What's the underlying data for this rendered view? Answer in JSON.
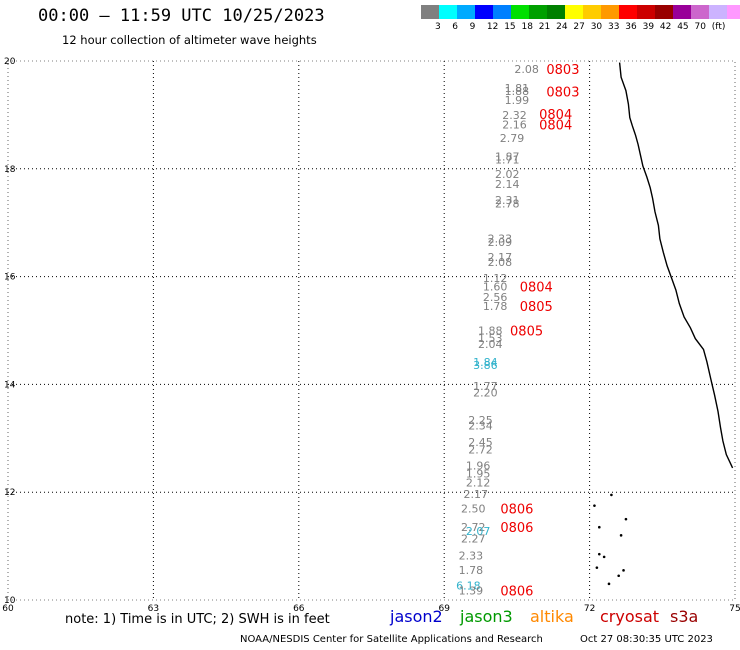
{
  "header": {
    "title": "00:00 — 11:59 UTC 10/25/2023",
    "subtitle": "12 hour collection of altimeter wave heights"
  },
  "legend": {
    "colors": [
      "#808080",
      "#00ffff",
      "#00aaff",
      "#0000ff",
      "#0080ff",
      "#00e000",
      "#00a000",
      "#008000",
      "#ffff00",
      "#ffcc00",
      "#ff9900",
      "#ff0000",
      "#cc0000",
      "#990000",
      "#990099",
      "#cc66cc",
      "#ccb3ff",
      "#ff99ff",
      "#000000"
    ],
    "labels": [
      "3",
      "6",
      "9",
      "12",
      "15",
      "18",
      "21",
      "24",
      "27",
      "30",
      "33",
      "36",
      "39",
      "42",
      "45",
      "70",
      "(ft)"
    ]
  },
  "map": {
    "lon_labels": [
      "60",
      "63",
      "66",
      "69",
      "72",
      "75"
    ],
    "lat_labels": [
      "10",
      "12",
      "14",
      "16",
      "18",
      "20"
    ],
    "lon_range": [
      60,
      75
    ],
    "lat_range": [
      10,
      20
    ],
    "grid": true,
    "coastline": "west coast of India"
  },
  "observations": [
    {
      "lon": 70.7,
      "lat": 19.85,
      "v": "2.08",
      "c": "#808080"
    },
    {
      "lon": 70.5,
      "lat": 19.5,
      "v": "1.81",
      "c": "#808080"
    },
    {
      "lon": 70.5,
      "lat": 19.44,
      "v": "1.88",
      "c": "#808080"
    },
    {
      "lon": 70.5,
      "lat": 19.28,
      "v": "1.99",
      "c": "#808080"
    },
    {
      "lon": 70.45,
      "lat": 19.0,
      "v": "2.32",
      "c": "#808080"
    },
    {
      "lon": 70.45,
      "lat": 18.82,
      "v": "2.16",
      "c": "#808080"
    },
    {
      "lon": 70.4,
      "lat": 18.57,
      "v": "2.79",
      "c": "#808080"
    },
    {
      "lon": 70.3,
      "lat": 18.23,
      "v": "1.87",
      "c": "#808080"
    },
    {
      "lon": 70.3,
      "lat": 18.17,
      "v": "1.71",
      "c": "#808080"
    },
    {
      "lon": 70.3,
      "lat": 17.9,
      "v": "2.02",
      "c": "#808080"
    },
    {
      "lon": 70.3,
      "lat": 17.72,
      "v": "2.14",
      "c": "#808080"
    },
    {
      "lon": 70.3,
      "lat": 17.42,
      "v": "2.31",
      "c": "#808080"
    },
    {
      "lon": 70.3,
      "lat": 17.36,
      "v": "2.78",
      "c": "#808080"
    },
    {
      "lon": 70.15,
      "lat": 16.71,
      "v": "2.33",
      "c": "#808080"
    },
    {
      "lon": 70.15,
      "lat": 16.64,
      "v": "2.09",
      "c": "#808080"
    },
    {
      "lon": 70.15,
      "lat": 16.36,
      "v": "2.17",
      "c": "#808080"
    },
    {
      "lon": 70.15,
      "lat": 16.27,
      "v": "2.08",
      "c": "#808080"
    },
    {
      "lon": 70.05,
      "lat": 15.97,
      "v": "1.12",
      "c": "#808080"
    },
    {
      "lon": 70.05,
      "lat": 15.82,
      "v": "1.60",
      "c": "#808080"
    },
    {
      "lon": 70.05,
      "lat": 15.62,
      "v": "2.56",
      "c": "#808080"
    },
    {
      "lon": 70.05,
      "lat": 15.45,
      "v": "1.78",
      "c": "#808080"
    },
    {
      "lon": 69.95,
      "lat": 15.0,
      "v": "1.88",
      "c": "#808080"
    },
    {
      "lon": 69.95,
      "lat": 14.86,
      "v": "1.53",
      "c": "#808080"
    },
    {
      "lon": 69.95,
      "lat": 14.75,
      "v": "2.04",
      "c": "#808080"
    },
    {
      "lon": 69.85,
      "lat": 14.42,
      "v": "1.84",
      "c": "#33b3cc"
    },
    {
      "lon": 69.85,
      "lat": 14.36,
      "v": "3.86",
      "c": "#33b3cc"
    },
    {
      "lon": 69.85,
      "lat": 13.97,
      "v": "1.77",
      "c": "#808080"
    },
    {
      "lon": 69.85,
      "lat": 13.85,
      "v": "2.20",
      "c": "#808080"
    },
    {
      "lon": 69.75,
      "lat": 13.34,
      "v": "2.25",
      "c": "#808080"
    },
    {
      "lon": 69.75,
      "lat": 13.24,
      "v": "2.34",
      "c": "#808080"
    },
    {
      "lon": 69.75,
      "lat": 12.93,
      "v": "2.45",
      "c": "#808080"
    },
    {
      "lon": 69.75,
      "lat": 12.79,
      "v": "2.72",
      "c": "#808080"
    },
    {
      "lon": 69.7,
      "lat": 12.5,
      "v": "1.96",
      "c": "#808080"
    },
    {
      "lon": 69.7,
      "lat": 12.35,
      "v": "1.95",
      "c": "#808080"
    },
    {
      "lon": 69.7,
      "lat": 12.18,
      "v": "2.12",
      "c": "#808080"
    },
    {
      "lon": 69.65,
      "lat": 11.97,
      "v": "2.17",
      "c": "#808080"
    },
    {
      "lon": 69.6,
      "lat": 11.7,
      "v": "2.50",
      "c": "#808080"
    },
    {
      "lon": 69.6,
      "lat": 11.35,
      "v": "2.72",
      "c": "#808080"
    },
    {
      "lon": 69.7,
      "lat": 11.28,
      "v": "2.07",
      "c": "#33b3cc"
    },
    {
      "lon": 69.6,
      "lat": 11.14,
      "v": "2.27",
      "c": "#808080"
    },
    {
      "lon": 69.55,
      "lat": 10.83,
      "v": "2.33",
      "c": "#808080"
    },
    {
      "lon": 69.55,
      "lat": 10.56,
      "v": "1.78",
      "c": "#808080"
    },
    {
      "lon": 69.5,
      "lat": 10.27,
      "v": "6.18",
      "c": "#33b3cc"
    },
    {
      "lon": 69.55,
      "lat": 10.18,
      "v": "1.39",
      "c": "#808080"
    }
  ],
  "pass_times": [
    {
      "lon": 71.45,
      "lat": 19.85,
      "t": "0803"
    },
    {
      "lon": 71.45,
      "lat": 19.43,
      "t": "0803"
    },
    {
      "lon": 71.3,
      "lat": 19.02,
      "t": "0804"
    },
    {
      "lon": 71.3,
      "lat": 18.82,
      "t": "0804"
    },
    {
      "lon": 70.9,
      "lat": 15.82,
      "t": "0804"
    },
    {
      "lon": 70.9,
      "lat": 15.45,
      "t": "0805"
    },
    {
      "lon": 70.7,
      "lat": 15.0,
      "t": "0805"
    },
    {
      "lon": 70.5,
      "lat": 11.7,
      "t": "0806"
    },
    {
      "lon": 70.5,
      "lat": 11.35,
      "t": "0806"
    },
    {
      "lon": 70.5,
      "lat": 10.18,
      "t": "0806"
    }
  ],
  "coastline": [
    [
      72.62,
      19.97
    ],
    [
      72.65,
      19.7
    ],
    [
      72.75,
      19.45
    ],
    [
      72.8,
      19.2
    ],
    [
      72.83,
      18.95
    ],
    [
      72.88,
      18.8
    ],
    [
      72.95,
      18.62
    ],
    [
      73.0,
      18.45
    ],
    [
      73.05,
      18.25
    ],
    [
      73.1,
      18.05
    ],
    [
      73.18,
      17.85
    ],
    [
      73.25,
      17.65
    ],
    [
      73.3,
      17.45
    ],
    [
      73.35,
      17.2
    ],
    [
      73.42,
      16.95
    ],
    [
      73.45,
      16.7
    ],
    [
      73.52,
      16.45
    ],
    [
      73.6,
      16.2
    ],
    [
      73.7,
      15.95
    ],
    [
      73.78,
      15.75
    ],
    [
      73.85,
      15.5
    ],
    [
      73.95,
      15.25
    ],
    [
      74.08,
      15.05
    ],
    [
      74.18,
      14.85
    ],
    [
      74.35,
      14.65
    ],
    [
      74.42,
      14.42
    ],
    [
      74.5,
      14.1
    ],
    [
      74.58,
      13.8
    ],
    [
      74.65,
      13.5
    ],
    [
      74.7,
      13.2
    ],
    [
      74.75,
      12.95
    ],
    [
      74.82,
      12.7
    ],
    [
      74.95,
      12.45
    ]
  ],
  "islands": [
    [
      72.45,
      11.95
    ],
    [
      72.1,
      11.75
    ],
    [
      72.75,
      11.5
    ],
    [
      72.2,
      11.35
    ],
    [
      72.65,
      11.2
    ],
    [
      72.2,
      10.85
    ],
    [
      72.3,
      10.8
    ],
    [
      72.15,
      10.6
    ],
    [
      72.7,
      10.55
    ],
    [
      72.4,
      10.3
    ],
    [
      72.6,
      10.45
    ]
  ],
  "footer": {
    "note": "note: 1) Time is in UTC; 2) SWH is in feet",
    "satellites": [
      {
        "name": "jason2",
        "color": "#0000cc"
      },
      {
        "name": "jason3",
        "color": "#009900"
      },
      {
        "name": "altika",
        "color": "#ff8800"
      },
      {
        "name": "cryosat",
        "color": "#cc0000"
      },
      {
        "name": "s3a",
        "color": "#990000"
      }
    ],
    "credit": "NOAA/NESDIS Center for Satellite Applications and Research",
    "timestamp": "Oct 27 08:30:35 UTC 2023"
  }
}
